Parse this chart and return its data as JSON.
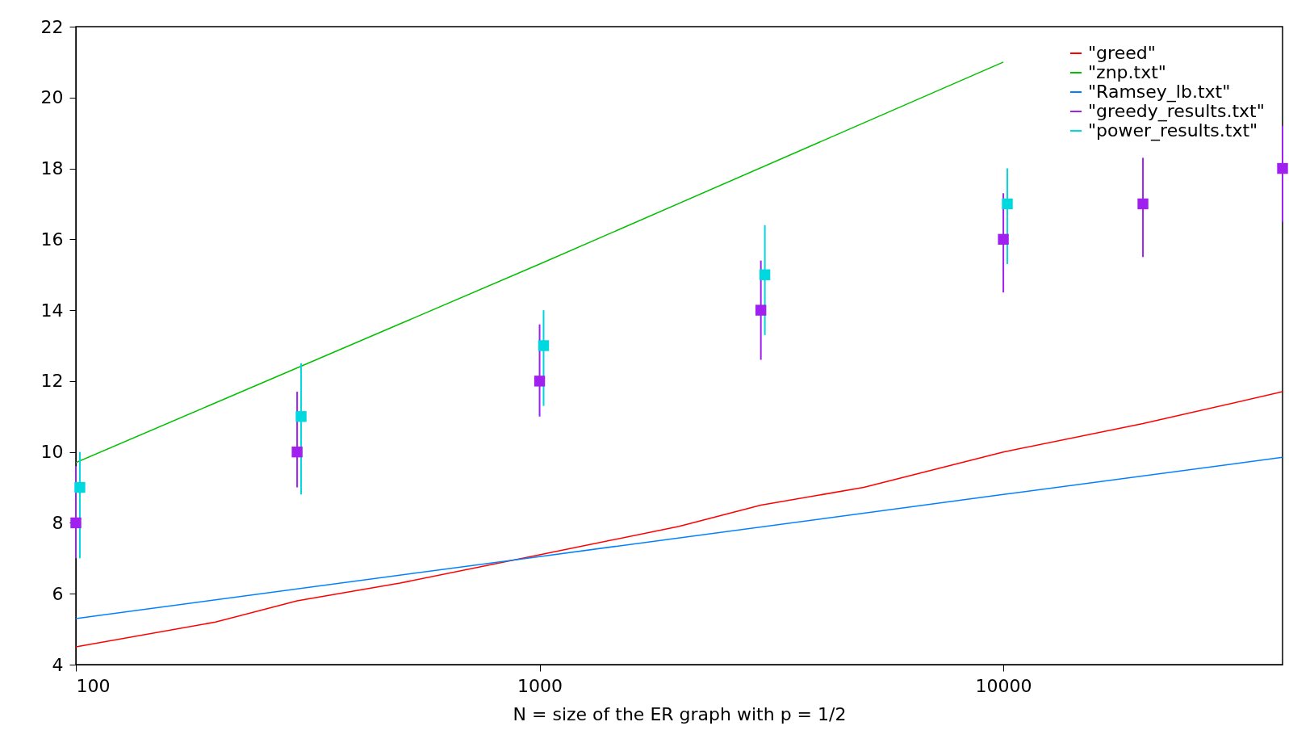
{
  "chart_data": {
    "type": "line",
    "xlabel": "N = size of the ER graph with p = 1/2",
    "log": "x",
    "xlim": [
      100,
      40000
    ],
    "xticks": [
      100,
      1000,
      10000
    ],
    "ylim": [
      4,
      22
    ],
    "yticks": [
      4,
      6,
      8,
      10,
      12,
      14,
      16,
      18,
      20,
      22
    ],
    "grid": false,
    "legend": "top right",
    "line_style": "solid",
    "series": [
      {
        "name": "\"greed\"",
        "color": "#ff0000",
        "marker": "none",
        "x": [
          100,
          200,
          300,
          500,
          1000,
          2000,
          3000,
          5000,
          10000,
          20000,
          40000
        ],
        "values": [
          4.5,
          5.2,
          5.8,
          6.3,
          7.1,
          7.9,
          8.5,
          9.0,
          10.0,
          10.8,
          11.7
        ]
      },
      {
        "name": "\"znp.txt\"",
        "color": "#00c000",
        "marker": "none",
        "x": [
          100,
          1000,
          10000
        ],
        "values": [
          9.7,
          15.3,
          21.0
        ]
      },
      {
        "name": "\"Ramsey_lb.txt\"",
        "color": "#0080ff",
        "marker": "none",
        "x": [
          100,
          1000,
          10000,
          40000
        ],
        "values": [
          5.3,
          7.05,
          8.8,
          9.85
        ]
      },
      {
        "name": "\"greedy_results.txt\"",
        "color": "#a020f0",
        "type": "scatter",
        "marker": "square",
        "x": [
          100,
          300,
          1000,
          3000,
          10000,
          20000,
          40000
        ],
        "values": [
          8,
          10,
          12,
          14,
          16,
          17,
          18
        ],
        "errors": [
          [
            7,
            9.6
          ],
          [
            9,
            11.7
          ],
          [
            11,
            13.6
          ],
          [
            12.6,
            15.4
          ],
          [
            14.5,
            17.3
          ],
          [
            15.5,
            18.3
          ],
          [
            16.5,
            19.2
          ]
        ]
      },
      {
        "name": "\"power_results.txt\"",
        "color": "#00d8e0",
        "type": "scatter",
        "marker": "square",
        "x": [
          102,
          306,
          1020,
          3060,
          10200
        ],
        "values": [
          9,
          11,
          13,
          15,
          17
        ],
        "errors": [
          [
            7,
            10
          ],
          [
            8.8,
            12.5
          ],
          [
            11.3,
            14
          ],
          [
            13.3,
            16.4
          ],
          [
            15.3,
            18
          ]
        ]
      }
    ]
  }
}
